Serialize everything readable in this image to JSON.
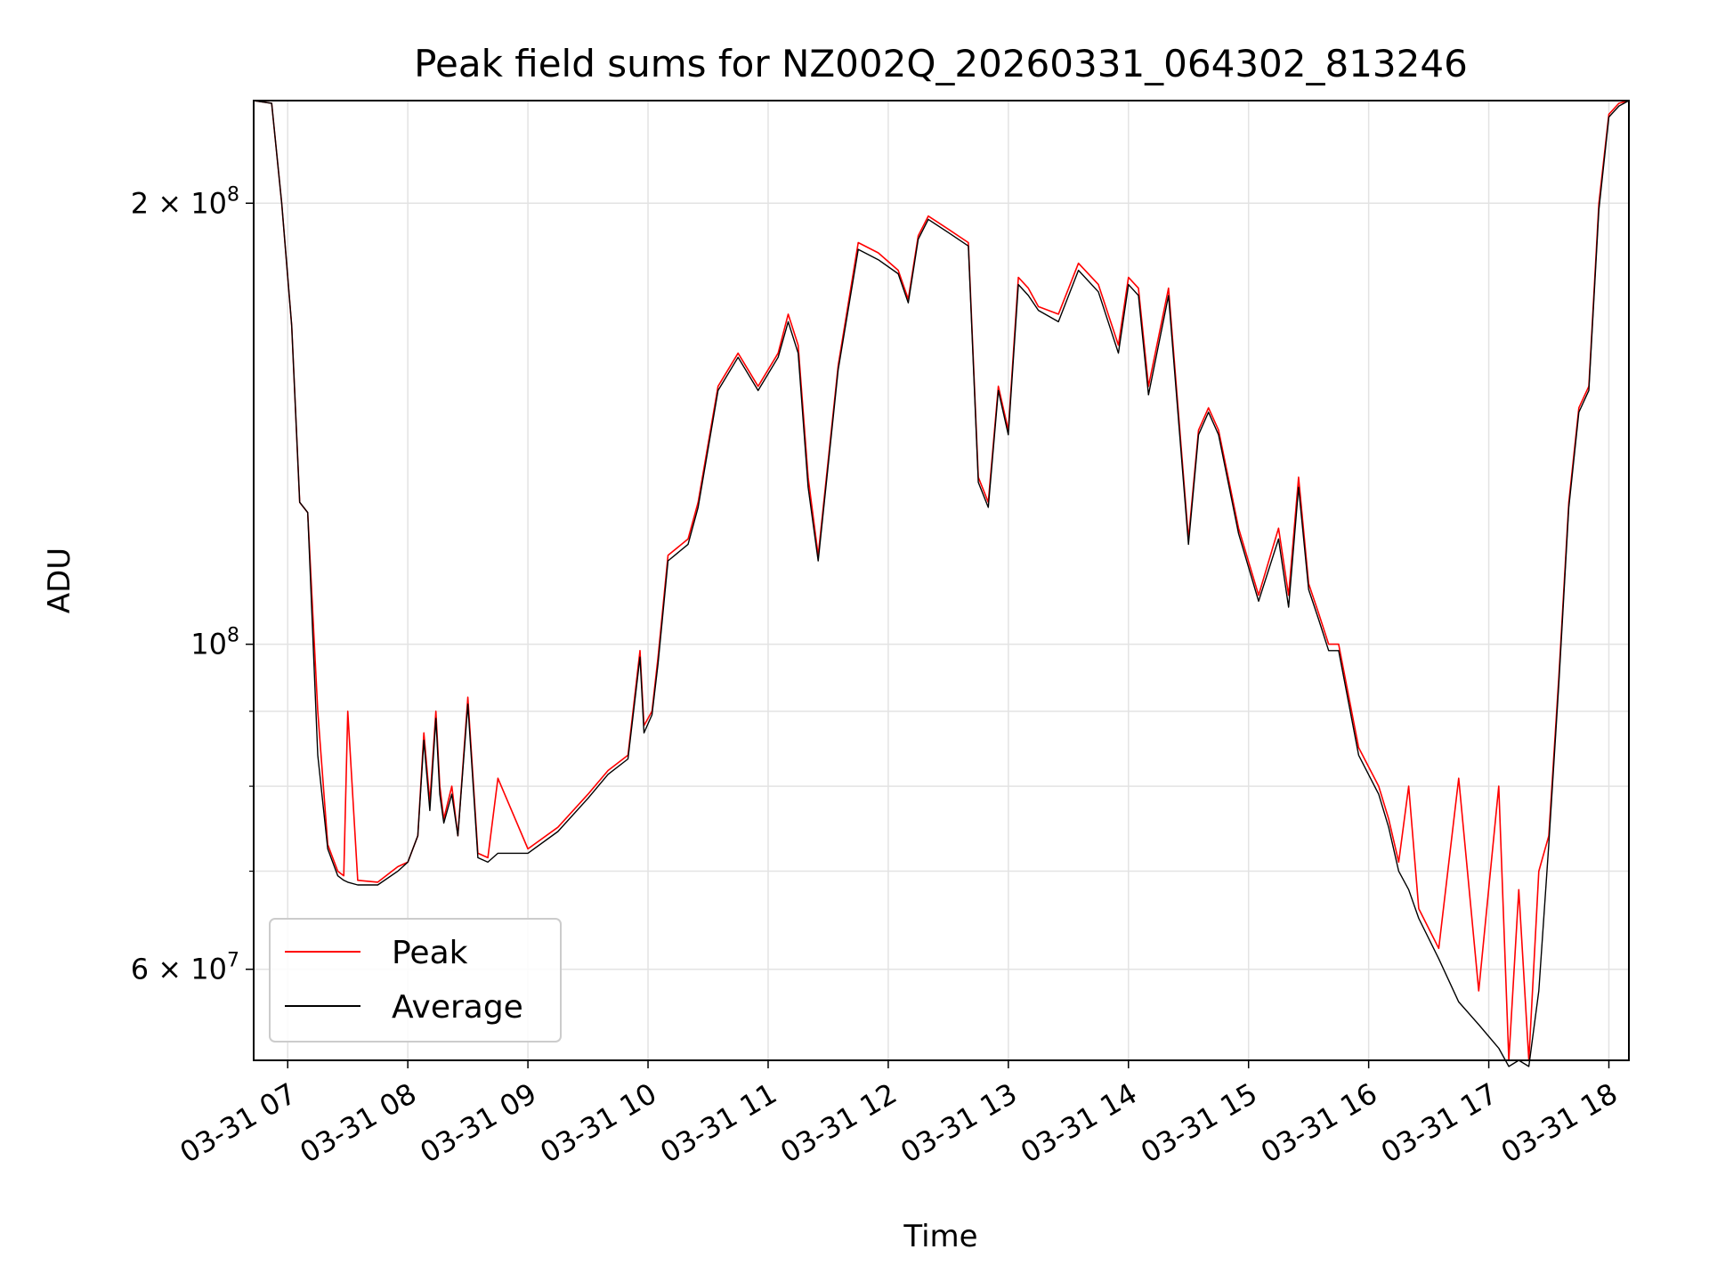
{
  "chart_data": {
    "type": "line",
    "title": "Peak field sums for NZ002Q_20260331_064302_813246",
    "xlabel": "Time",
    "ylabel": "ADU",
    "yscale": "log",
    "ylim": [
      52000000,
      235000000
    ],
    "xlim": [
      "2026-03-31 06:43",
      "2026-03-31 18:10"
    ],
    "grid": true,
    "legend_position": "lower-left",
    "x_tick_labels": [
      "03-31 07",
      "03-31 08",
      "03-31 09",
      "03-31 10",
      "03-31 11",
      "03-31 12",
      "03-31 13",
      "03-31 14",
      "03-31 15",
      "03-31 16",
      "03-31 17",
      "03-31 18"
    ],
    "y_tick_labels": [
      {
        "value": 200000000,
        "mantissa": "2",
        "exponent": "8"
      },
      {
        "value": 100000000,
        "mantissa": "",
        "exponent": "8"
      },
      {
        "value": 60000000,
        "mantissa": "6",
        "exponent": "7"
      }
    ],
    "y_minor_ticks": [
      70000000,
      80000000,
      90000000
    ],
    "series": [
      {
        "name": "Peak",
        "color": "#ff0000",
        "x": [
          "2026-03-31 06:43",
          "2026-03-31 06:52",
          "2026-03-31 06:57",
          "2026-03-31 07:02",
          "2026-03-31 07:06",
          "2026-03-31 07:10",
          "2026-03-31 07:15",
          "2026-03-31 07:20",
          "2026-03-31 07:25",
          "2026-03-31 07:28",
          "2026-03-31 07:30",
          "2026-03-31 07:35",
          "2026-03-31 07:45",
          "2026-03-31 07:55",
          "2026-03-31 08:00",
          "2026-03-31 08:05",
          "2026-03-31 08:08",
          "2026-03-31 08:11",
          "2026-03-31 08:14",
          "2026-03-31 08:16",
          "2026-03-31 08:18",
          "2026-03-31 08:22",
          "2026-03-31 08:25",
          "2026-03-31 08:30",
          "2026-03-31 08:35",
          "2026-03-31 08:40",
          "2026-03-31 08:45",
          "2026-03-31 09:00",
          "2026-03-31 09:15",
          "2026-03-31 09:30",
          "2026-03-31 09:40",
          "2026-03-31 09:50",
          "2026-03-31 09:56",
          "2026-03-31 09:58",
          "2026-03-31 10:02",
          "2026-03-31 10:05",
          "2026-03-31 10:10",
          "2026-03-31 10:20",
          "2026-03-31 10:25",
          "2026-03-31 10:35",
          "2026-03-31 10:45",
          "2026-03-31 10:55",
          "2026-03-31 11:05",
          "2026-03-31 11:10",
          "2026-03-31 11:15",
          "2026-03-31 11:20",
          "2026-03-31 11:25",
          "2026-03-31 11:35",
          "2026-03-31 11:45",
          "2026-03-31 11:55",
          "2026-03-31 12:05",
          "2026-03-31 12:10",
          "2026-03-31 12:15",
          "2026-03-31 12:20",
          "2026-03-31 12:30",
          "2026-03-31 12:40",
          "2026-03-31 12:45",
          "2026-03-31 12:50",
          "2026-03-31 12:55",
          "2026-03-31 13:00",
          "2026-03-31 13:05",
          "2026-03-31 13:10",
          "2026-03-31 13:15",
          "2026-03-31 13:25",
          "2026-03-31 13:35",
          "2026-03-31 13:45",
          "2026-03-31 13:55",
          "2026-03-31 14:00",
          "2026-03-31 14:05",
          "2026-03-31 14:10",
          "2026-03-31 14:20",
          "2026-03-31 14:30",
          "2026-03-31 14:35",
          "2026-03-31 14:40",
          "2026-03-31 14:45",
          "2026-03-31 14:55",
          "2026-03-31 15:05",
          "2026-03-31 15:15",
          "2026-03-31 15:20",
          "2026-03-31 15:25",
          "2026-03-31 15:30",
          "2026-03-31 15:35",
          "2026-03-31 15:40",
          "2026-03-31 15:45",
          "2026-03-31 15:55",
          "2026-03-31 16:05",
          "2026-03-31 16:10",
          "2026-03-31 16:15",
          "2026-03-31 16:20",
          "2026-03-31 16:25",
          "2026-03-31 16:35",
          "2026-03-31 16:45",
          "2026-03-31 16:55",
          "2026-03-31 17:05",
          "2026-03-31 17:10",
          "2026-03-31 17:15",
          "2026-03-31 17:20",
          "2026-03-31 17:25",
          "2026-03-31 17:30",
          "2026-03-31 17:35",
          "2026-03-31 17:40",
          "2026-03-31 17:45",
          "2026-03-31 17:50",
          "2026-03-31 17:55",
          "2026-03-31 18:00",
          "2026-03-31 18:05",
          "2026-03-31 18:10"
        ],
        "y": [
          235000000,
          234000000,
          200000000,
          165000000,
          125000000,
          123000000,
          90000000,
          73000000,
          70000000,
          69500000,
          90000000,
          69000000,
          68800000,
          70500000,
          71000000,
          74000000,
          87000000,
          78000000,
          90000000,
          80000000,
          76000000,
          80000000,
          74000000,
          92000000,
          72000000,
          71500000,
          81000000,
          72500000,
          75000000,
          79000000,
          82000000,
          84000000,
          99000000,
          88000000,
          90000000,
          98000000,
          115000000,
          118000000,
          125000000,
          150000000,
          158000000,
          150000000,
          158000000,
          168000000,
          160000000,
          130000000,
          115000000,
          155000000,
          188000000,
          185000000,
          180000000,
          172000000,
          190000000,
          196000000,
          192000000,
          188000000,
          130000000,
          125000000,
          150000000,
          140000000,
          178000000,
          175000000,
          170000000,
          168000000,
          182000000,
          176000000,
          160000000,
          178000000,
          175000000,
          150000000,
          175000000,
          118000000,
          140000000,
          145000000,
          140000000,
          120000000,
          108000000,
          120000000,
          108000000,
          130000000,
          110000000,
          105000000,
          100000000,
          100000000,
          85000000,
          80000000,
          76000000,
          71000000,
          80000000,
          66000000,
          62000000,
          81000000,
          58000000,
          80000000,
          52000000,
          68000000,
          52000000,
          70000000,
          74000000,
          95000000,
          125000000,
          145000000,
          150000000,
          200000000,
          230000000,
          234000000,
          235000000
        ]
      },
      {
        "name": "Average",
        "color": "#000000",
        "x": [
          "2026-03-31 06:43",
          "2026-03-31 06:52",
          "2026-03-31 06:57",
          "2026-03-31 07:02",
          "2026-03-31 07:06",
          "2026-03-31 07:10",
          "2026-03-31 07:15",
          "2026-03-31 07:20",
          "2026-03-31 07:25",
          "2026-03-31 07:28",
          "2026-03-31 07:30",
          "2026-03-31 07:35",
          "2026-03-31 07:45",
          "2026-03-31 07:55",
          "2026-03-31 08:00",
          "2026-03-31 08:05",
          "2026-03-31 08:08",
          "2026-03-31 08:11",
          "2026-03-31 08:14",
          "2026-03-31 08:16",
          "2026-03-31 08:18",
          "2026-03-31 08:22",
          "2026-03-31 08:25",
          "2026-03-31 08:30",
          "2026-03-31 08:35",
          "2026-03-31 08:40",
          "2026-03-31 08:45",
          "2026-03-31 09:00",
          "2026-03-31 09:15",
          "2026-03-31 09:30",
          "2026-03-31 09:40",
          "2026-03-31 09:50",
          "2026-03-31 09:56",
          "2026-03-31 09:58",
          "2026-03-31 10:02",
          "2026-03-31 10:05",
          "2026-03-31 10:10",
          "2026-03-31 10:20",
          "2026-03-31 10:25",
          "2026-03-31 10:35",
          "2026-03-31 10:45",
          "2026-03-31 10:55",
          "2026-03-31 11:05",
          "2026-03-31 11:10",
          "2026-03-31 11:15",
          "2026-03-31 11:20",
          "2026-03-31 11:25",
          "2026-03-31 11:35",
          "2026-03-31 11:45",
          "2026-03-31 11:55",
          "2026-03-31 12:05",
          "2026-03-31 12:10",
          "2026-03-31 12:15",
          "2026-03-31 12:20",
          "2026-03-31 12:30",
          "2026-03-31 12:40",
          "2026-03-31 12:45",
          "2026-03-31 12:50",
          "2026-03-31 12:55",
          "2026-03-31 13:00",
          "2026-03-31 13:05",
          "2026-03-31 13:10",
          "2026-03-31 13:15",
          "2026-03-31 13:25",
          "2026-03-31 13:35",
          "2026-03-31 13:45",
          "2026-03-31 13:55",
          "2026-03-31 14:00",
          "2026-03-31 14:05",
          "2026-03-31 14:10",
          "2026-03-31 14:20",
          "2026-03-31 14:30",
          "2026-03-31 14:35",
          "2026-03-31 14:40",
          "2026-03-31 14:45",
          "2026-03-31 14:55",
          "2026-03-31 15:05",
          "2026-03-31 15:15",
          "2026-03-31 15:20",
          "2026-03-31 15:25",
          "2026-03-31 15:30",
          "2026-03-31 15:35",
          "2026-03-31 15:40",
          "2026-03-31 15:45",
          "2026-03-31 15:55",
          "2026-03-31 16:05",
          "2026-03-31 16:10",
          "2026-03-31 16:15",
          "2026-03-31 16:20",
          "2026-03-31 16:25",
          "2026-03-31 16:35",
          "2026-03-31 16:45",
          "2026-03-31 16:55",
          "2026-03-31 17:05",
          "2026-03-31 17:10",
          "2026-03-31 17:15",
          "2026-03-31 17:20",
          "2026-03-31 17:25",
          "2026-03-31 17:30",
          "2026-03-31 17:35",
          "2026-03-31 17:40",
          "2026-03-31 17:45",
          "2026-03-31 17:50",
          "2026-03-31 17:55",
          "2026-03-31 18:00",
          "2026-03-31 18:05",
          "2026-03-31 18:10"
        ],
        "y": [
          235000000,
          234000000,
          200000000,
          165000000,
          125000000,
          123000000,
          84000000,
          72500000,
          69500000,
          69000000,
          68800000,
          68500000,
          68500000,
          70000000,
          71000000,
          74000000,
          86000000,
          77000000,
          89000000,
          79000000,
          75500000,
          79000000,
          74000000,
          91000000,
          71500000,
          71000000,
          72000000,
          72000000,
          74500000,
          78500000,
          81500000,
          83500000,
          98000000,
          87000000,
          89500000,
          97000000,
          114000000,
          117000000,
          124000000,
          149000000,
          157000000,
          149000000,
          157000000,
          166000000,
          158000000,
          128000000,
          114000000,
          154000000,
          186000000,
          183000000,
          179000000,
          171000000,
          189000000,
          195000000,
          191000000,
          187000000,
          129000000,
          124000000,
          149000000,
          139000000,
          176000000,
          173000000,
          169000000,
          166000000,
          180000000,
          174000000,
          158000000,
          176000000,
          173000000,
          148000000,
          173000000,
          117000000,
          139000000,
          144000000,
          139000000,
          119000000,
          107000000,
          118000000,
          106000000,
          128000000,
          109000000,
          104000000,
          99000000,
          99000000,
          84000000,
          79000000,
          75000000,
          70000000,
          68000000,
          65000000,
          61000000,
          57000000,
          55000000,
          53000000,
          51500000,
          52000000,
          51500000,
          58000000,
          73000000,
          94000000,
          124000000,
          144000000,
          149000000,
          198000000,
          229000000,
          233000000,
          235000000
        ]
      }
    ]
  }
}
